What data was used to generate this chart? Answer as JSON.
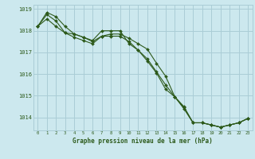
{
  "title": "Graphe pression niveau de la mer (hPa)",
  "background_color": "#cce8ee",
  "grid_color": "#aacdd6",
  "line_color": "#2d5a1b",
  "tick_color": "#2d5a1b",
  "x_ticks": [
    0,
    1,
    2,
    3,
    4,
    5,
    6,
    7,
    8,
    9,
    10,
    11,
    12,
    13,
    14,
    15,
    16,
    17,
    18,
    19,
    20,
    21,
    22,
    23
  ],
  "ylim": [
    1013.4,
    1019.2
  ],
  "yticks": [
    1014,
    1015,
    1016,
    1017,
    1018,
    1019
  ],
  "series": [
    [
      1018.2,
      1018.85,
      1018.65,
      1018.2,
      1017.85,
      1017.7,
      1017.55,
      1018.0,
      1018.0,
      1018.0,
      1017.4,
      1017.1,
      1016.6,
      1016.05,
      1015.3,
      1014.95,
      1014.5,
      1013.75,
      1013.75,
      1013.65,
      1013.55,
      1013.65,
      1013.75,
      1013.95
    ],
    [
      1018.2,
      1018.75,
      1018.45,
      1017.9,
      1017.85,
      1017.7,
      1017.5,
      1017.75,
      1017.85,
      1017.85,
      1017.65,
      1017.4,
      1017.15,
      1016.5,
      1015.9,
      1014.95,
      1014.4,
      1013.75,
      1013.75,
      1013.65,
      1013.55,
      1013.65,
      1013.75,
      1013.95
    ],
    [
      1018.2,
      1018.55,
      1018.2,
      1017.9,
      1017.7,
      1017.55,
      1017.4,
      1017.75,
      1017.75,
      1017.75,
      1017.5,
      1017.1,
      1016.7,
      1016.1,
      1015.5,
      1014.95,
      1014.45,
      1013.75,
      1013.75,
      1013.65,
      1013.55,
      1013.65,
      1013.75,
      1013.95
    ]
  ]
}
